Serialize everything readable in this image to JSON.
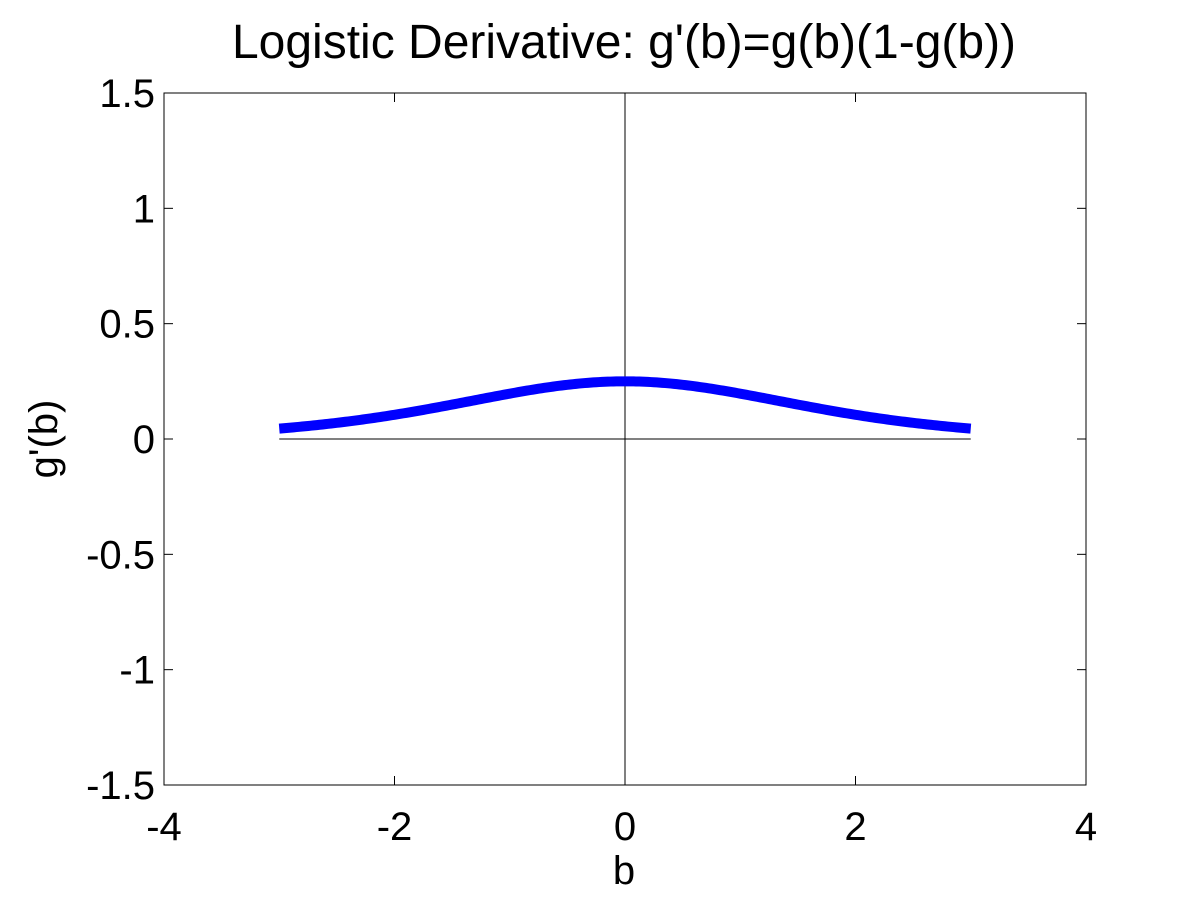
{
  "chart_data": {
    "type": "line",
    "title": "Logistic Derivative: g'(b)=g(b)(1-g(b))",
    "xlabel": "b",
    "ylabel": "g'(b)",
    "xlim": [
      -4,
      4
    ],
    "ylim": [
      -1.5,
      1.5
    ],
    "xticks": [
      -4,
      -2,
      0,
      2,
      4
    ],
    "xtick_labels": [
      "-4",
      "-2",
      "0",
      "2",
      "4"
    ],
    "yticks": [
      -1.5,
      -1,
      -0.5,
      0,
      0.5,
      1,
      1.5
    ],
    "ytick_labels": [
      "-1.5",
      "-1",
      "-0.5",
      "0",
      "0.5",
      "1",
      "1.5"
    ],
    "grid": false,
    "reference_lines": [
      {
        "orientation": "horizontal",
        "value": 0,
        "from": -3,
        "to": 3
      },
      {
        "orientation": "vertical",
        "value": 0,
        "from": -1.5,
        "to": 1.5
      }
    ],
    "series": [
      {
        "color": "#0000ff",
        "x": [
          -3,
          -2.5,
          -2,
          -1.5,
          -1,
          -0.5,
          0,
          0.5,
          1,
          1.5,
          2,
          2.5,
          3
        ],
        "y": [
          0.045,
          0.07,
          0.105,
          0.149,
          0.197,
          0.235,
          0.25,
          0.235,
          0.197,
          0.149,
          0.105,
          0.07,
          0.045
        ]
      }
    ]
  }
}
